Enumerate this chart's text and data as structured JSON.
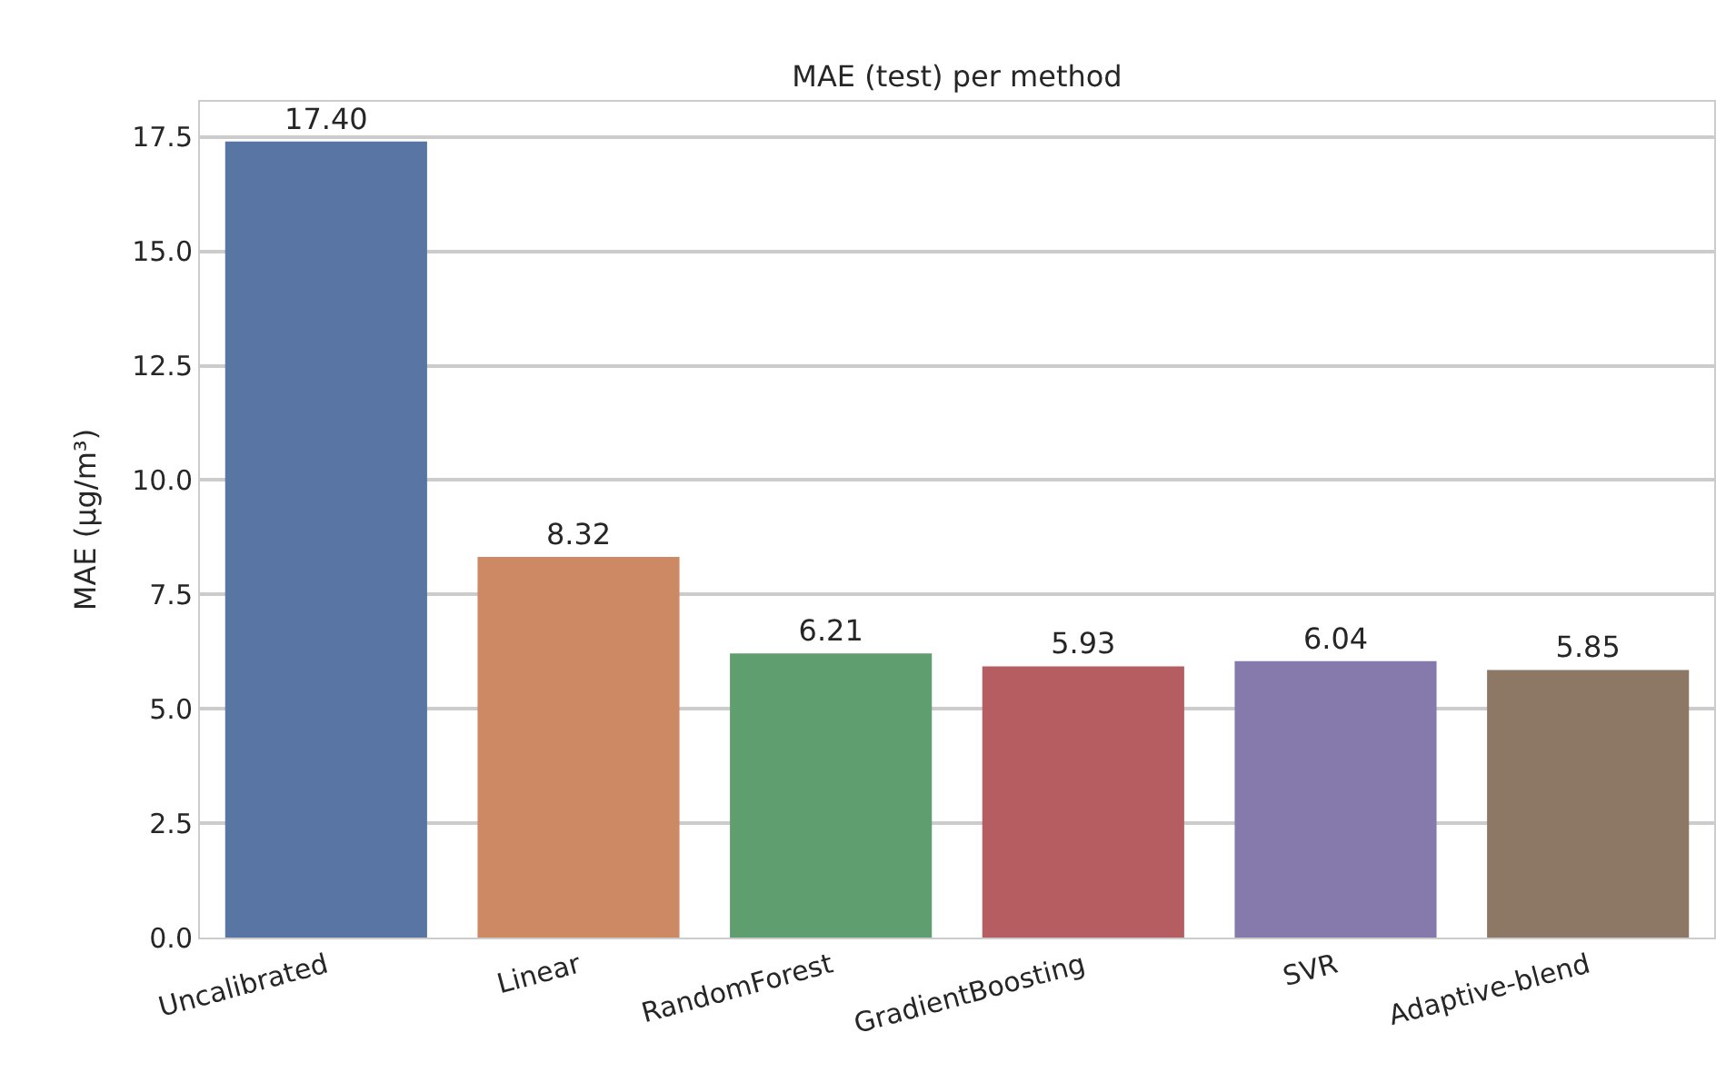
{
  "chart_data": {
    "type": "bar",
    "title": "MAE (test) per method",
    "ylabel": "MAE (µg/m³)",
    "categories": [
      "Uncalibrated",
      "Linear",
      "RandomForest",
      "GradientBoosting",
      "SVR",
      "Adaptive-blend"
    ],
    "values": [
      17.4,
      8.32,
      6.21,
      5.93,
      6.04,
      5.85
    ],
    "value_labels": [
      "17.40",
      "8.32",
      "6.21",
      "5.93",
      "6.04",
      "5.85"
    ],
    "colors": [
      "#5875a4",
      "#cc8963",
      "#5f9e6e",
      "#b55d60",
      "#857aab",
      "#8d7866"
    ],
    "ylim": [
      0,
      18.27
    ],
    "yticks": [
      {
        "value": 0,
        "label": "0.0"
      },
      {
        "value": 2.5,
        "label": "2.5"
      },
      {
        "value": 5,
        "label": "5.0"
      },
      {
        "value": 7.5,
        "label": "7.5"
      },
      {
        "value": 10,
        "label": "10.0"
      },
      {
        "value": 12.5,
        "label": "12.5"
      },
      {
        "value": 15,
        "label": "15.0"
      },
      {
        "value": 17.5,
        "label": "17.5"
      }
    ],
    "grid": "y",
    "legend": false
  }
}
